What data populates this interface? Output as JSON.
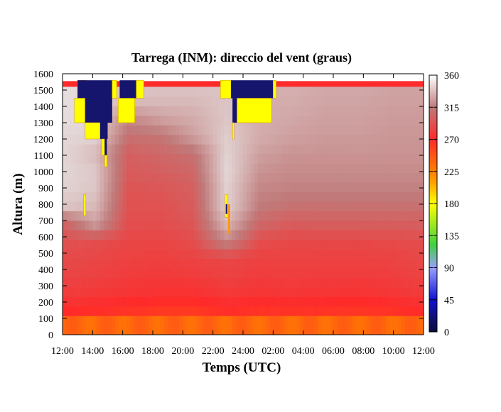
{
  "chart_data": {
    "type": "heatmap",
    "title": "Tarrega (INM): direccio del vent (graus)",
    "xlabel": "Temps (UTC)",
    "ylabel": "Altura (m)",
    "x_ticks": [
      "12:00",
      "14:00",
      "16:00",
      "18:00",
      "20:00",
      "22:00",
      "24:00",
      "02:00",
      "04:00",
      "06:00",
      "08:00",
      "10:00",
      "12:00"
    ],
    "y_ticks": [
      "0",
      "100",
      "200",
      "300",
      "400",
      "500",
      "600",
      "700",
      "800",
      "900",
      "1000",
      "1100",
      "1200",
      "1300",
      "1400",
      "1500",
      "1600"
    ],
    "ylim": [
      0,
      1600
    ],
    "xlim_hours": [
      0,
      24
    ],
    "colorbar": {
      "ticks": [
        "0",
        "45",
        "90",
        "135",
        "180",
        "225",
        "270",
        "315",
        "360"
      ],
      "range": [
        0,
        360
      ]
    },
    "colors": {
      "red": "#ff2a2a",
      "orange": "#ff9a12",
      "yellow": "#ffff00",
      "navy": "#15156e",
      "light_gray": "#e6e6e6",
      "gray": "#aaaaaa"
    },
    "height_levels_m": [
      40,
      100,
      160,
      220,
      280,
      340,
      400,
      460,
      520,
      580,
      640,
      700,
      760,
      820,
      880,
      940,
      1000,
      1060,
      1120,
      1180,
      1240,
      1300,
      1360,
      1420,
      1480,
      1540
    ],
    "hour_breaks": [
      0,
      2,
      4,
      6,
      8,
      10,
      12,
      14,
      16,
      18,
      20,
      22,
      24
    ],
    "surface_layer": {
      "description_values_deg": [
        255,
        248,
        240,
        238,
        245,
        250,
        248,
        248,
        246,
        245,
        246,
        250
      ]
    },
    "field_deg": [
      [
        258,
        255,
        250,
        242,
        244,
        252,
        246,
        246,
        244,
        244,
        246,
        252
      ],
      [
        270,
        268,
        265,
        262,
        262,
        268,
        265,
        266,
        265,
        264,
        266,
        270
      ],
      [
        280,
        278,
        276,
        274,
        274,
        278,
        276,
        277,
        276,
        275,
        277,
        280
      ],
      [
        285,
        283,
        280,
        279,
        280,
        283,
        280,
        281,
        280,
        280,
        281,
        284
      ],
      [
        288,
        286,
        283,
        282,
        284,
        286,
        283,
        284,
        283,
        283,
        284,
        287
      ],
      [
        292,
        290,
        286,
        285,
        290,
        320,
        290,
        287,
        287,
        287,
        288,
        290
      ],
      [
        300,
        330,
        290,
        290,
        295,
        340,
        305,
        298,
        300,
        300,
        300,
        300
      ],
      [
        345,
        340,
        292,
        292,
        298,
        350,
        315,
        310,
        310,
        310,
        310,
        310
      ],
      [
        350,
        345,
        294,
        295,
        300,
        350,
        320,
        318,
        318,
        318,
        318,
        318
      ],
      [
        352,
        346,
        298,
        300,
        305,
        352,
        325,
        322,
        322,
        322,
        322,
        322
      ],
      [
        352,
        340,
        300,
        305,
        310,
        350,
        330,
        325,
        325,
        325,
        325,
        325
      ],
      [
        352,
        350,
        310,
        312,
        330,
        348,
        335,
        330,
        328,
        328,
        326,
        326
      ],
      [
        355,
        350,
        320,
        330,
        335,
        345,
        335,
        333,
        330,
        330,
        328,
        328
      ],
      [
        355,
        350,
        340,
        340,
        340,
        345,
        335,
        335,
        332,
        332,
        330,
        330
      ],
      [
        355,
        352,
        345,
        345,
        345,
        345,
        338,
        337,
        334,
        334,
        332,
        332
      ]
    ],
    "cells_special": [
      {
        "label": "180",
        "h0": 1.0,
        "h1": 1.6,
        "z0": 1450,
        "z1": 1560
      },
      {
        "label": "0",
        "h0": 1.0,
        "h1": 3.3,
        "z0": 1450,
        "z1": 1560
      },
      {
        "label": "180",
        "h0": 3.3,
        "h1": 3.6,
        "z0": 1450,
        "z1": 1560
      },
      {
        "label": "0",
        "h0": 3.8,
        "h1": 4.9,
        "z0": 1450,
        "z1": 1560
      },
      {
        "label": "180",
        "h0": 4.9,
        "h1": 5.4,
        "z0": 1450,
        "z1": 1560
      },
      {
        "label": "180",
        "h0": 10.5,
        "h1": 11.2,
        "z0": 1450,
        "z1": 1560
      },
      {
        "label": "0",
        "h0": 11.2,
        "h1": 14.0,
        "z0": 1450,
        "z1": 1560
      },
      {
        "label": "180",
        "h0": 14.0,
        "h1": 14.2,
        "z0": 1450,
        "z1": 1560
      },
      {
        "label": "180",
        "h0": 0.8,
        "h1": 1.5,
        "z0": 1300,
        "z1": 1450
      },
      {
        "label": "0",
        "h0": 1.5,
        "h1": 3.0,
        "z0": 1300,
        "z1": 1450
      },
      {
        "label": "0",
        "h0": 3.0,
        "h1": 3.3,
        "z0": 1300,
        "z1": 1450
      },
      {
        "label": "180",
        "h0": 3.7,
        "h1": 4.8,
        "z0": 1300,
        "z1": 1450
      },
      {
        "label": "0",
        "h0": 11.3,
        "h1": 11.6,
        "z0": 1300,
        "z1": 1450
      },
      {
        "label": "180",
        "h0": 11.6,
        "h1": 13.9,
        "z0": 1300,
        "z1": 1450
      },
      {
        "label": "180",
        "h0": 1.5,
        "h1": 2.5,
        "z0": 1200,
        "z1": 1300
      },
      {
        "label": "0",
        "h0": 2.5,
        "h1": 3.0,
        "z0": 1200,
        "z1": 1300
      },
      {
        "label": "180",
        "h0": 11.3,
        "h1": 11.4,
        "z0": 1200,
        "z1": 1300
      },
      {
        "label": "180",
        "h0": 2.6,
        "h1": 2.8,
        "z0": 1100,
        "z1": 1200
      },
      {
        "label": "0",
        "h0": 2.8,
        "h1": 2.95,
        "z0": 1100,
        "z1": 1200
      },
      {
        "label": "180",
        "h0": 2.8,
        "h1": 2.95,
        "z0": 1030,
        "z1": 1100
      },
      {
        "label": "180",
        "h0": 1.4,
        "h1": 1.55,
        "z0": 730,
        "z1": 860
      },
      {
        "label": "180",
        "h0": 10.8,
        "h1": 11.0,
        "z0": 720,
        "z1": 860
      },
      {
        "label": "0",
        "h0": 10.85,
        "h1": 10.95,
        "z0": 740,
        "z1": 800
      },
      {
        "label": "225",
        "h0": 11.0,
        "h1": 11.15,
        "z0": 620,
        "z1": 800
      }
    ]
  }
}
